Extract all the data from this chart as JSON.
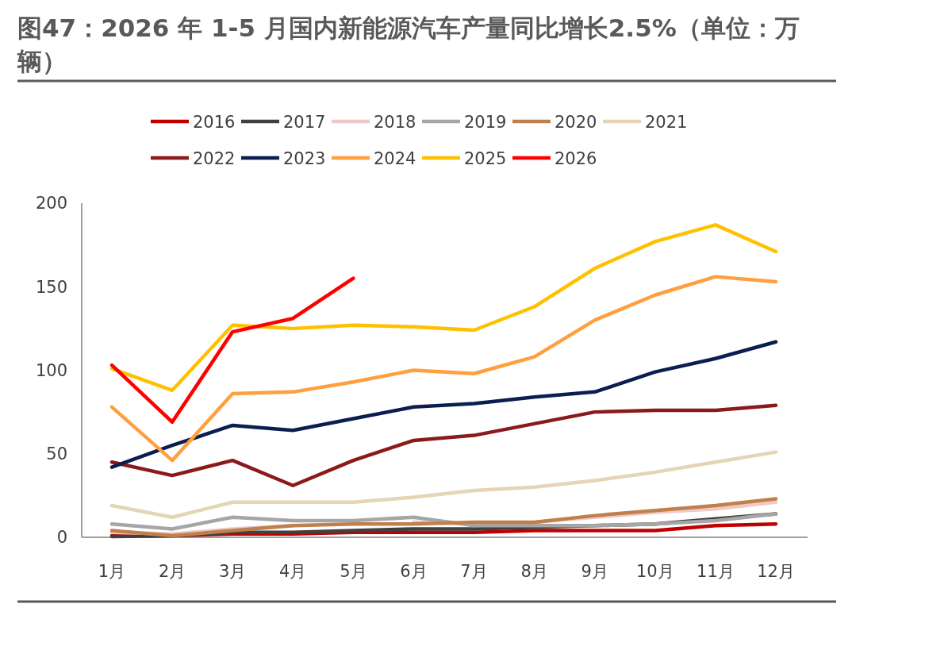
{
  "chart_data": {
    "type": "line",
    "title": "图47：2026 年 1-5 月国内新能源汽车产量同比增长2.5%（单位：万辆）",
    "categories": [
      "1月",
      "2月",
      "3月",
      "4月",
      "5月",
      "6月",
      "7月",
      "8月",
      "9月",
      "10月",
      "11月",
      "12月"
    ],
    "series": [
      {
        "name": "2016",
        "color": "#c00000",
        "values": [
          1,
          1,
          2,
          2,
          3,
          3,
          3,
          4,
          4,
          4,
          7,
          8
        ]
      },
      {
        "name": "2017",
        "color": "#404040",
        "values": [
          0.5,
          1,
          3,
          3,
          4,
          5,
          5,
          6,
          7,
          8,
          11,
          14
        ]
      },
      {
        "name": "2018",
        "color": "#f0c8c8",
        "values": [
          3,
          2,
          5,
          7,
          null,
          9,
          8,
          9,
          12,
          15,
          17,
          21
        ]
      },
      {
        "name": "2019",
        "color": "#a6a6a6",
        "values": [
          8,
          5,
          12,
          10,
          10,
          12,
          7,
          7,
          7,
          8,
          10,
          14
        ]
      },
      {
        "name": "2020",
        "color": "#c0804b",
        "values": [
          4,
          1,
          4,
          7,
          8,
          8,
          9,
          9,
          13,
          16,
          19,
          23
        ]
      },
      {
        "name": "2021",
        "color": "#e6d5b5",
        "values": [
          19,
          12,
          21,
          21,
          21,
          24,
          28,
          30,
          34,
          39,
          45,
          51
        ]
      },
      {
        "name": "2022",
        "color": "#8b1a1a",
        "values": [
          45,
          37,
          46,
          31,
          46,
          58,
          61,
          68,
          75,
          76,
          76,
          79
        ]
      },
      {
        "name": "2023",
        "color": "#0c1e4f",
        "values": [
          42,
          55,
          67,
          64,
          71,
          78,
          80,
          84,
          87,
          99,
          107,
          117
        ]
      },
      {
        "name": "2024",
        "color": "#ff9f3e",
        "values": [
          78,
          46,
          86,
          87,
          93,
          100,
          98,
          108,
          130,
          145,
          156,
          153
        ]
      },
      {
        "name": "2025",
        "color": "#ffc000",
        "values": [
          101,
          88,
          127,
          125,
          127,
          126,
          124,
          138,
          161,
          177,
          187,
          171
        ]
      },
      {
        "name": "2026",
        "color": "#ff0000",
        "values": [
          103,
          69,
          123,
          131,
          155,
          null,
          null,
          null,
          null,
          null,
          null,
          null
        ]
      }
    ],
    "ylim": [
      0,
      200
    ],
    "yticks": [
      0,
      50,
      100,
      150,
      200
    ],
    "grid": false,
    "legend": "top",
    "marker": "none",
    "line_style": "solid"
  }
}
